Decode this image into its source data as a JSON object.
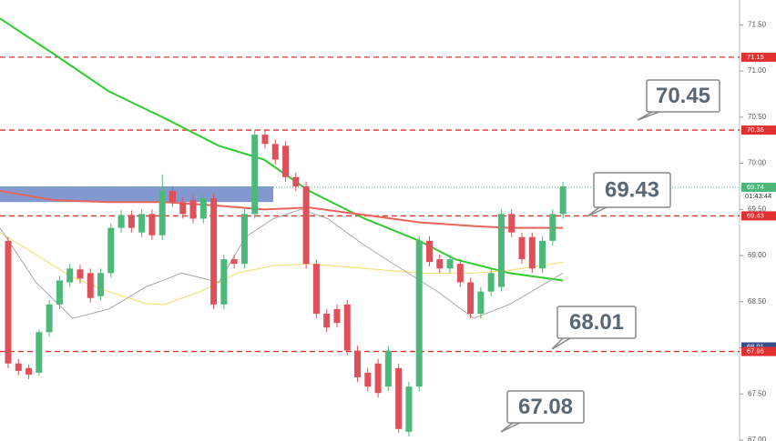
{
  "chart_data": {
    "type": "candlestick",
    "ylim": [
      66.99,
      71.77
    ],
    "yticks": [
      {
        "value": 67.0,
        "label": "67.00"
      },
      {
        "value": 67.5,
        "label": "67.50"
      },
      {
        "value": 68.0,
        "label": "68.00"
      },
      {
        "value": 68.5,
        "label": "68.50"
      },
      {
        "value": 69.0,
        "label": "69.00"
      },
      {
        "value": 69.5,
        "label": "69.50"
      },
      {
        "value": 70.0,
        "label": "70.00"
      },
      {
        "value": 70.5,
        "label": "70.50"
      },
      {
        "value": 71.0,
        "label": "71.00"
      },
      {
        "value": 71.5,
        "label": "71.50"
      }
    ],
    "up_color": "#4cb87a",
    "down_color": "#e0505a",
    "candles": {
      "open": [
        69.16,
        67.83,
        67.78,
        67.73,
        68.17,
        68.47,
        68.71,
        68.85,
        68.81,
        68.56,
        68.81,
        69.3,
        69.44,
        69.25,
        69.45,
        69.22,
        69.7,
        69.58,
        69.6,
        69.4,
        69.62,
        68.47,
        68.96,
        68.91,
        69.45,
        70.31,
        70.21,
        70.19,
        69.85,
        69.75,
        68.91,
        68.37,
        68.42,
        68.47,
        67.97,
        67.73,
        67.83,
        67.58,
        67.78,
        67.09,
        67.58,
        69.16,
        68.96,
        68.86,
        68.91,
        68.71,
        68.37,
        68.61,
        68.66,
        69.45,
        69.2,
        69.2,
        68.86,
        69.16,
        69.45
      ],
      "high": [
        69.2,
        67.88,
        67.82,
        68.2,
        68.52,
        68.78,
        68.91,
        68.9,
        68.86,
        68.86,
        69.35,
        69.49,
        69.49,
        69.5,
        69.5,
        69.88,
        69.75,
        69.63,
        69.65,
        69.67,
        69.67,
        69.01,
        69.01,
        69.5,
        70.36,
        70.36,
        70.26,
        70.24,
        69.9,
        69.8,
        68.96,
        68.42,
        68.47,
        68.52,
        68.02,
        67.78,
        67.88,
        68.02,
        67.83,
        67.63,
        69.21,
        69.21,
        69.01,
        69.01,
        68.96,
        68.76,
        68.66,
        68.86,
        69.5,
        69.5,
        69.25,
        69.25,
        69.21,
        69.5,
        69.8
      ],
      "low": [
        67.78,
        67.7,
        67.66,
        67.7,
        68.12,
        68.42,
        68.66,
        68.7,
        68.49,
        68.51,
        68.76,
        69.25,
        69.25,
        69.2,
        69.17,
        69.17,
        69.53,
        69.4,
        69.35,
        69.35,
        68.42,
        68.42,
        68.86,
        68.86,
        69.4,
        70.16,
        69.99,
        69.8,
        69.7,
        68.86,
        68.32,
        68.17,
        68.22,
        67.92,
        67.63,
        67.53,
        67.46,
        67.53,
        67.08,
        67.04,
        67.53,
        68.88,
        68.81,
        68.81,
        68.66,
        68.32,
        68.32,
        68.56,
        68.61,
        69.2,
        68.91,
        68.81,
        68.81,
        69.11,
        69.4
      ],
      "close": [
        67.83,
        67.75,
        67.71,
        68.17,
        68.47,
        68.73,
        68.86,
        68.75,
        68.54,
        68.81,
        69.3,
        69.44,
        69.3,
        69.45,
        69.22,
        69.7,
        69.58,
        69.45,
        69.4,
        69.62,
        68.47,
        68.96,
        68.91,
        69.45,
        70.31,
        70.21,
        70.04,
        69.85,
        69.75,
        68.91,
        68.37,
        68.22,
        68.27,
        67.97,
        67.68,
        67.58,
        67.51,
        67.97,
        67.12,
        67.58,
        69.16,
        68.93,
        68.86,
        68.96,
        68.71,
        68.37,
        68.61,
        68.81,
        69.45,
        69.25,
        68.96,
        68.86,
        69.16,
        69.45,
        69.75
      ]
    },
    "lines": [
      {
        "color": "#2ecc2e",
        "width": 2,
        "x": [
          -0.8,
          4.5,
          9.8,
          15.2,
          20.5,
          24.9,
          29.3,
          34.7,
          40.0,
          43.5,
          48.8,
          54.0
        ],
        "values": [
          71.57,
          71.18,
          70.78,
          70.49,
          70.19,
          70.04,
          69.7,
          69.4,
          69.16,
          68.96,
          68.81,
          68.73
        ]
      },
      {
        "color": "#e8645a",
        "width": 2,
        "x": [
          -0.8,
          4.5,
          9.8,
          15.2,
          20.5,
          24.9,
          29.3,
          34.7,
          40.0,
          45.3,
          48.8,
          54.0
        ],
        "values": [
          69.7,
          69.6,
          69.58,
          69.58,
          69.54,
          69.5,
          69.52,
          69.44,
          69.36,
          69.32,
          69.3,
          69.3
        ]
      },
      {
        "color": "#f3e27a",
        "width": 1.2,
        "x": [
          -0.8,
          2.7,
          6.3,
          9.8,
          13.4,
          15.2,
          18.7,
          22.3,
          25.8,
          29.3,
          34.7,
          40.0,
          45.3,
          48.8,
          54.0
        ],
        "values": [
          69.25,
          69.01,
          68.76,
          68.61,
          68.48,
          68.47,
          68.61,
          68.81,
          68.89,
          68.91,
          68.86,
          68.81,
          68.81,
          68.84,
          68.93
        ]
      },
      {
        "color": "#a8a8a8",
        "width": 1,
        "x": [
          -0.8,
          2.7,
          6.3,
          9.8,
          13.4,
          16.9,
          20.5,
          23.1,
          25.8,
          28.5,
          31.1,
          34.7,
          38.2,
          41.8,
          45.3,
          48.8,
          54.0
        ],
        "values": [
          69.3,
          68.71,
          68.32,
          68.42,
          68.66,
          68.81,
          68.71,
          69.2,
          69.4,
          69.5,
          69.4,
          69.11,
          68.86,
          68.61,
          68.32,
          68.47,
          68.81
        ]
      }
    ],
    "zone": {
      "color": "#6f86c8",
      "x": [
        -0.8,
        25.8
      ],
      "values": [
        69.75,
        69.58
      ]
    },
    "hlines": [
      71.15,
      70.36,
      69.43,
      67.96
    ],
    "hline_color": "#e03030",
    "last_price": {
      "value": 69.74,
      "color": "#4cb87a",
      "countdown": "01:43:44"
    },
    "price_labels": [
      {
        "value": 71.15,
        "color": "#e03030"
      },
      {
        "value": 70.36,
        "color": "#e03030"
      },
      {
        "value": 69.43,
        "color": "#e03030"
      },
      {
        "value": 68.01,
        "color": "#3a4f8a"
      },
      {
        "value": 67.96,
        "color": "#e03030"
      }
    ],
    "callouts": [
      70.45,
      69.43,
      68.01,
      67.08
    ]
  }
}
